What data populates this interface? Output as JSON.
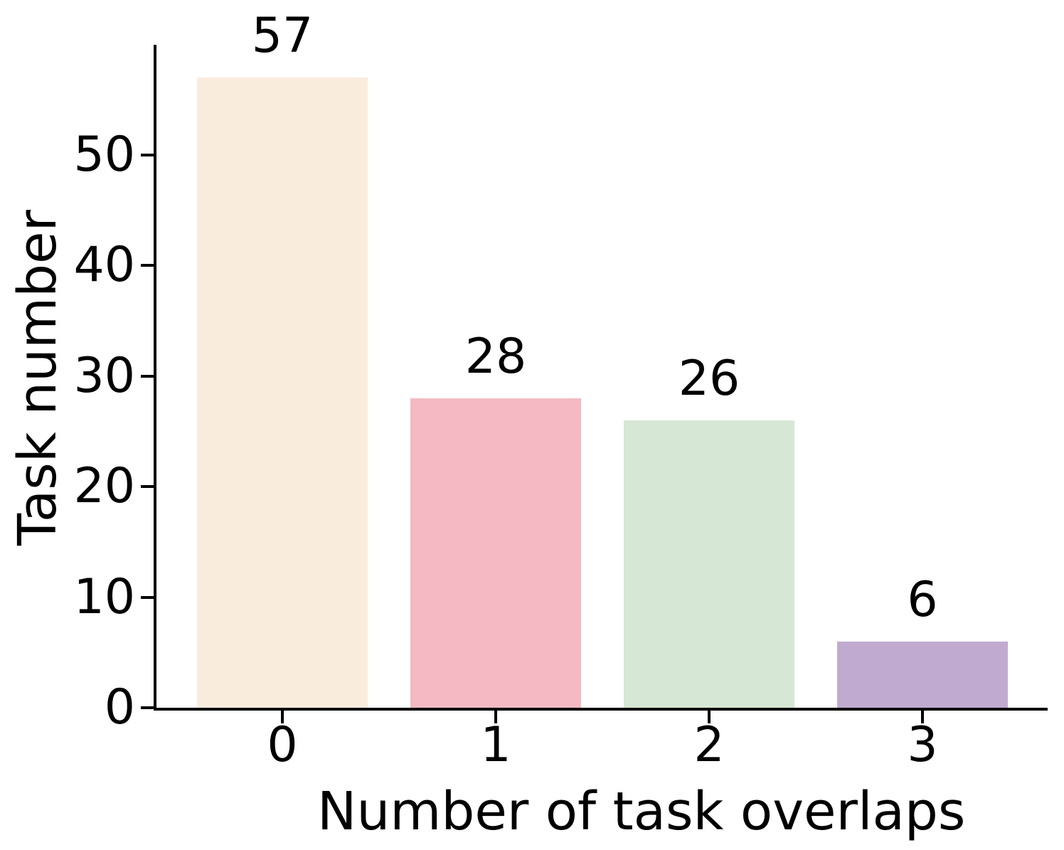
{
  "chart_data": {
    "type": "bar",
    "title": "",
    "xlabel": "Number of task overlaps",
    "ylabel": "Task number",
    "categories": [
      "0",
      "1",
      "2",
      "3"
    ],
    "values": [
      57,
      28,
      26,
      6
    ],
    "bar_value_labels": [
      "57",
      "28",
      "26",
      "6"
    ],
    "bar_colors": [
      "#FAECDD",
      "#F4B9C2",
      "#D6E7D5",
      "#C1AACF"
    ],
    "yticks": [
      0,
      10,
      20,
      30,
      40,
      50
    ],
    "ylim": [
      0,
      60
    ],
    "grid": false,
    "legend_position": "none",
    "axis_color": "#000000",
    "background_color": "#FFFFFF"
  }
}
